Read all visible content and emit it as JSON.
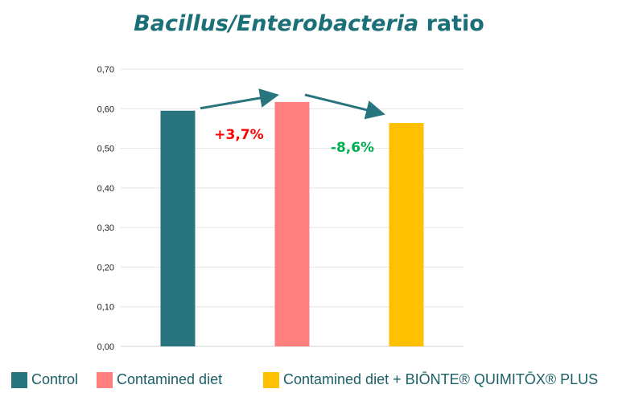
{
  "chart_data": {
    "type": "bar",
    "title_italic": "Bacillus/Enterobacteria",
    "title_rest": "ratio",
    "categories": [
      "Control",
      "Contamined diet",
      "Contamined diet + BIŌNTE® QUIMITŌX® PLUS"
    ],
    "values": [
      0.595,
      0.617,
      0.564
    ],
    "colors": [
      "#28757f",
      "#ff7f7f",
      "#ffc000"
    ],
    "ylim": [
      0,
      0.7
    ],
    "yticks": [
      "0,00",
      "0,10",
      "0,20",
      "0,30",
      "0,40",
      "0,50",
      "0,60",
      "0,70"
    ],
    "grid": true,
    "legend_position": "bottom",
    "annotations": [
      {
        "text": "+3,7%",
        "color": "#ff0000"
      },
      {
        "text": "-8,6%",
        "color": "#00b050"
      }
    ],
    "arrow_color": "#28757f"
  }
}
